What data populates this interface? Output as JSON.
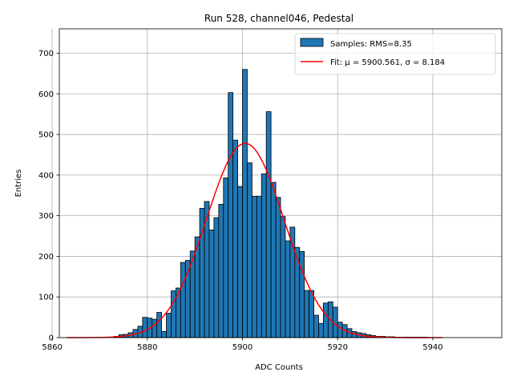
{
  "chart_data": {
    "type": "bar",
    "title": "Run 528, channel046, Pedestal",
    "xlabel": "ADC Counts",
    "ylabel": "Entries",
    "xlim": [
      5861.5,
      5954.5
    ],
    "ylim": [
      0,
      760
    ],
    "xticks": [
      5860,
      5880,
      5900,
      5920,
      5940
    ],
    "yticks": [
      0,
      100,
      200,
      300,
      400,
      500,
      600,
      700
    ],
    "grid": true,
    "legend_position": "upper-right",
    "bar_color": "#1f77b4",
    "fit_color": "#ff0000",
    "histogram": {
      "name": "Samples: RMS=8.35",
      "bin_start": 5873,
      "bin_width": 1,
      "counts": [
        3,
        7,
        8,
        12,
        20,
        28,
        50,
        48,
        45,
        62,
        15,
        60,
        115,
        122,
        185,
        190,
        213,
        248,
        318,
        335,
        265,
        295,
        328,
        393,
        603,
        486,
        372,
        660,
        430,
        348,
        348,
        403,
        556,
        382,
        345,
        298,
        238,
        272,
        222,
        212,
        116,
        116,
        55,
        35,
        85,
        88,
        75,
        38,
        32,
        22,
        15,
        12,
        10,
        7,
        5,
        3,
        3,
        2,
        2,
        1,
        1,
        1,
        1,
        1,
        1,
        1
      ]
    },
    "fit": {
      "name": "Fit: μ = 5900.561, σ = 8.184",
      "mu": 5900.561,
      "sigma": 8.184,
      "amplitude": 478,
      "x_range": [
        5863,
        5942
      ]
    }
  }
}
